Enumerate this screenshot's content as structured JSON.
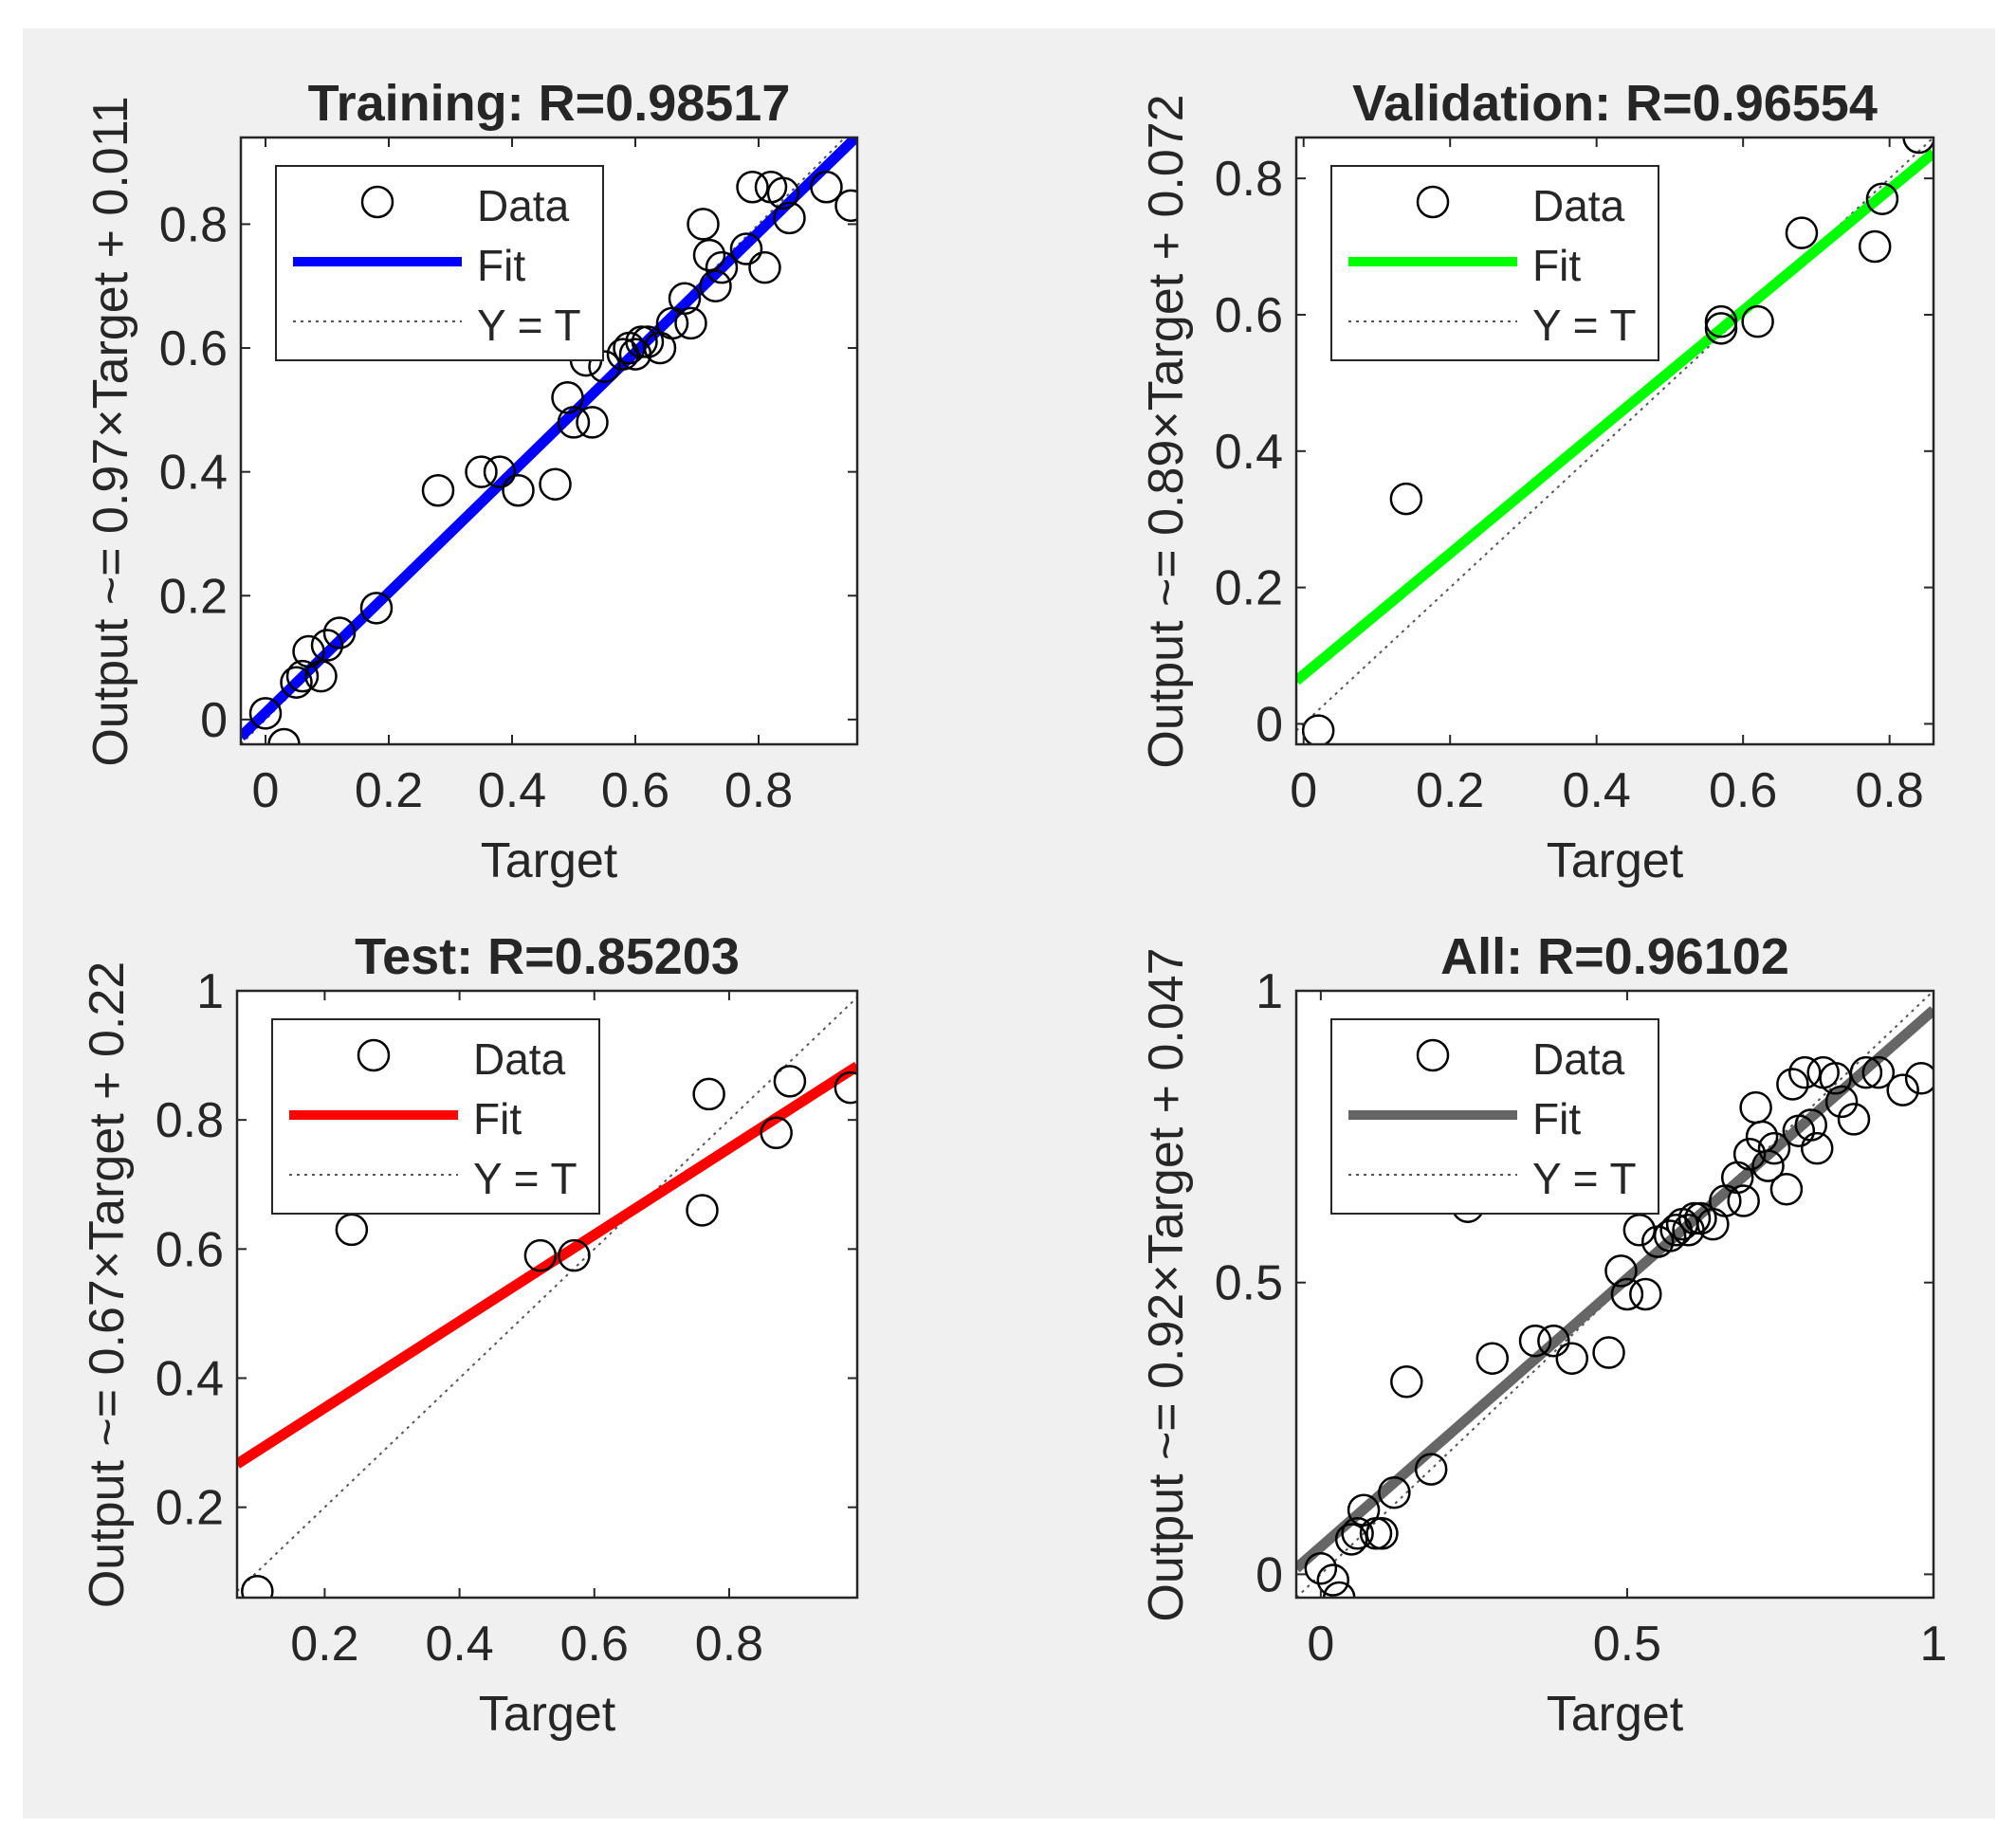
{
  "figure": {
    "background": "#f0f0f0"
  },
  "chart_data": [
    {
      "type": "scatter",
      "title": "Training: R=0.98517",
      "xlabel": "Target",
      "ylabel": "Output ~= 0.97×Target + 0.011",
      "xlim": [
        -0.04,
        0.96
      ],
      "ylim": [
        -0.04,
        0.94
      ],
      "xticks": [
        0,
        0.2,
        0.4,
        0.6,
        0.8
      ],
      "xtick_labels": [
        "0",
        "0.2",
        "0.4",
        "0.6",
        "0.8"
      ],
      "yticks": [
        0,
        0.2,
        0.4,
        0.6,
        0.8
      ],
      "ytick_labels": [
        "0",
        "0.2",
        "0.4",
        "0.6",
        "0.8"
      ],
      "fit": {
        "slope": 0.97,
        "intercept": 0.011,
        "color": "#0000ff"
      },
      "legend": [
        "Data",
        "Fit",
        "Y = T"
      ],
      "legend_position": "top-left",
      "points": [
        [
          0.0,
          0.01
        ],
        [
          0.03,
          -0.04
        ],
        [
          0.05,
          0.06
        ],
        [
          0.06,
          0.07
        ],
        [
          0.07,
          0.11
        ],
        [
          0.09,
          0.07
        ],
        [
          0.1,
          0.12
        ],
        [
          0.12,
          0.14
        ],
        [
          0.18,
          0.18
        ],
        [
          0.28,
          0.37
        ],
        [
          0.35,
          0.4
        ],
        [
          0.38,
          0.4
        ],
        [
          0.41,
          0.37
        ],
        [
          0.47,
          0.38
        ],
        [
          0.49,
          0.52
        ],
        [
          0.5,
          0.48
        ],
        [
          0.53,
          0.48
        ],
        [
          0.52,
          0.58
        ],
        [
          0.55,
          0.57
        ],
        [
          0.58,
          0.59
        ],
        [
          0.59,
          0.6
        ],
        [
          0.6,
          0.59
        ],
        [
          0.61,
          0.61
        ],
        [
          0.62,
          0.61
        ],
        [
          0.64,
          0.6
        ],
        [
          0.66,
          0.64
        ],
        [
          0.68,
          0.68
        ],
        [
          0.69,
          0.64
        ],
        [
          0.71,
          0.8
        ],
        [
          0.72,
          0.75
        ],
        [
          0.73,
          0.7
        ],
        [
          0.74,
          0.73
        ],
        [
          0.78,
          0.76
        ],
        [
          0.79,
          0.86
        ],
        [
          0.81,
          0.73
        ],
        [
          0.82,
          0.86
        ],
        [
          0.84,
          0.85
        ],
        [
          0.85,
          0.81
        ],
        [
          0.91,
          0.86
        ],
        [
          0.95,
          0.83
        ]
      ]
    },
    {
      "type": "scatter",
      "title": "Validation: R=0.96554",
      "xlabel": "Target",
      "ylabel": "Output ~= 0.89×Target + 0.072",
      "xlim": [
        -0.01,
        0.86
      ],
      "ylim": [
        -0.03,
        0.86
      ],
      "xticks": [
        0,
        0.2,
        0.4,
        0.6,
        0.8
      ],
      "xtick_labels": [
        "0",
        "0.2",
        "0.4",
        "0.6",
        "0.8"
      ],
      "yticks": [
        0,
        0.2,
        0.4,
        0.6,
        0.8
      ],
      "ytick_labels": [
        "0",
        "0.2",
        "0.4",
        "0.6",
        "0.8"
      ],
      "fit": {
        "slope": 0.89,
        "intercept": 0.072,
        "color": "#00ff00"
      },
      "legend": [
        "Data",
        "Fit",
        "Y = T"
      ],
      "legend_position": "top-left",
      "points": [
        [
          0.02,
          -0.01
        ],
        [
          0.14,
          0.33
        ],
        [
          0.57,
          0.58
        ],
        [
          0.57,
          0.59
        ],
        [
          0.62,
          0.59
        ],
        [
          0.68,
          0.72
        ],
        [
          0.78,
          0.7
        ],
        [
          0.79,
          0.77
        ],
        [
          0.84,
          0.86
        ]
      ]
    },
    {
      "type": "scatter",
      "title": "Test: R=0.85203",
      "xlabel": "Target",
      "ylabel": "Output ~= 0.67×Target + 0.22",
      "xlim": [
        0.07,
        0.99
      ],
      "ylim": [
        0.06,
        1.0
      ],
      "xticks": [
        0.2,
        0.4,
        0.6,
        0.8
      ],
      "xtick_labels": [
        "0.2",
        "0.4",
        "0.6",
        "0.8"
      ],
      "yticks": [
        0.2,
        0.4,
        0.6,
        0.8,
        1.0
      ],
      "ytick_labels": [
        "0.2",
        "0.4",
        "0.6",
        "0.8",
        "1"
      ],
      "fit": {
        "slope": 0.67,
        "intercept": 0.22,
        "color": "#ff0000"
      },
      "legend": [
        "Data",
        "Fit",
        "Y = T"
      ],
      "legend_position": "top-left",
      "points": [
        [
          0.1,
          0.07
        ],
        [
          0.24,
          0.63
        ],
        [
          0.52,
          0.59
        ],
        [
          0.57,
          0.59
        ],
        [
          0.76,
          0.66
        ],
        [
          0.77,
          0.84
        ],
        [
          0.87,
          0.78
        ],
        [
          0.89,
          0.86
        ],
        [
          0.98,
          0.85
        ]
      ]
    },
    {
      "type": "scatter",
      "title": "All: R=0.96102",
      "xlabel": "Target",
      "ylabel": "Output ~= 0.92×Target + 0.047",
      "xlim": [
        -0.04,
        1.0
      ],
      "ylim": [
        -0.04,
        1.0
      ],
      "xticks": [
        0,
        0.5,
        1.0
      ],
      "xtick_labels": [
        "0",
        "0.5",
        "1"
      ],
      "yticks": [
        0,
        0.5,
        1.0
      ],
      "ytick_labels": [
        "0",
        "0.5",
        "1"
      ],
      "fit": {
        "slope": 0.92,
        "intercept": 0.047,
        "color": "#666666"
      },
      "legend": [
        "Data",
        "Fit",
        "Y = T"
      ],
      "legend_position": "top-left",
      "points": [
        [
          0.0,
          0.01
        ],
        [
          0.02,
          -0.01
        ],
        [
          0.03,
          -0.04
        ],
        [
          0.05,
          0.06
        ],
        [
          0.06,
          0.07
        ],
        [
          0.07,
          0.11
        ],
        [
          0.09,
          0.07
        ],
        [
          0.1,
          0.07
        ],
        [
          0.12,
          0.14
        ],
        [
          0.14,
          0.33
        ],
        [
          0.18,
          0.18
        ],
        [
          0.24,
          0.63
        ],
        [
          0.28,
          0.37
        ],
        [
          0.35,
          0.4
        ],
        [
          0.38,
          0.4
        ],
        [
          0.41,
          0.37
        ],
        [
          0.47,
          0.38
        ],
        [
          0.49,
          0.52
        ],
        [
          0.5,
          0.48
        ],
        [
          0.52,
          0.59
        ],
        [
          0.53,
          0.48
        ],
        [
          0.55,
          0.57
        ],
        [
          0.57,
          0.58
        ],
        [
          0.58,
          0.59
        ],
        [
          0.59,
          0.6
        ],
        [
          0.6,
          0.59
        ],
        [
          0.61,
          0.61
        ],
        [
          0.62,
          0.61
        ],
        [
          0.64,
          0.6
        ],
        [
          0.66,
          0.64
        ],
        [
          0.68,
          0.68
        ],
        [
          0.69,
          0.64
        ],
        [
          0.7,
          0.72
        ],
        [
          0.71,
          0.8
        ],
        [
          0.72,
          0.75
        ],
        [
          0.73,
          0.7
        ],
        [
          0.74,
          0.73
        ],
        [
          0.76,
          0.66
        ],
        [
          0.77,
          0.84
        ],
        [
          0.78,
          0.76
        ],
        [
          0.79,
          0.86
        ],
        [
          0.8,
          0.77
        ],
        [
          0.81,
          0.73
        ],
        [
          0.82,
          0.86
        ],
        [
          0.84,
          0.85
        ],
        [
          0.85,
          0.81
        ],
        [
          0.87,
          0.78
        ],
        [
          0.89,
          0.86
        ],
        [
          0.91,
          0.86
        ],
        [
          0.95,
          0.83
        ],
        [
          0.98,
          0.85
        ]
      ]
    }
  ]
}
